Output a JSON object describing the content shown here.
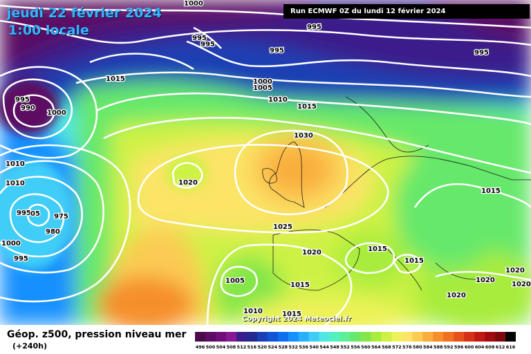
{
  "header": {
    "date": "jeudi 22 février 2024",
    "local_time": "1:00 locale",
    "run": "Run ECMWF 0Z du lundi 12 février 2024"
  },
  "footer": {
    "product": "Géop. z500, pression niveau mer",
    "lead": "(+240h)",
    "copyright": "Copyright 2024 Meteociel.fr"
  },
  "legend": {
    "values": [
      "496",
      "500",
      "504",
      "508",
      "512",
      "516",
      "520",
      "524",
      "528",
      "532",
      "536",
      "540",
      "544",
      "548",
      "552",
      "556",
      "560",
      "564",
      "568",
      "572",
      "576",
      "580",
      "584",
      "588",
      "592",
      "596",
      "600",
      "604",
      "608",
      "612",
      "616"
    ],
    "colors": [
      "#4a0a4a",
      "#5c0c62",
      "#700f7a",
      "#861a94",
      "#3a1f8a",
      "#23298f",
      "#1b3fb4",
      "#1055d6",
      "#0c6ff0",
      "#1590ff",
      "#28b0ff",
      "#3fcdf7",
      "#4fe6e6",
      "#55f0c0",
      "#5cf096",
      "#66e86a",
      "#84e64a",
      "#a8ec3c",
      "#cdf245",
      "#eef25a",
      "#fbe466",
      "#fbcb52",
      "#f9ad3c",
      "#f58f2a",
      "#f07020",
      "#e8501a",
      "#d83016",
      "#c01812",
      "#a00c10",
      "#7c0a0c",
      "#050505"
    ]
  },
  "isobar_labels": [
    {
      "text": "1000"
    },
    {
      "text": "995"
    },
    {
      "text": "995"
    },
    {
      "text": "995"
    },
    {
      "text": "995"
    },
    {
      "text": "995"
    },
    {
      "text": "1015"
    },
    {
      "text": "1000"
    },
    {
      "text": "1005"
    },
    {
      "text": "1010"
    },
    {
      "text": "1015"
    },
    {
      "text": "995"
    },
    {
      "text": "990"
    },
    {
      "text": "1000"
    },
    {
      "text": "1030"
    },
    {
      "text": "1010"
    },
    {
      "text": "1010"
    },
    {
      "text": "1020"
    },
    {
      "text": "995"
    },
    {
      "text": "975"
    },
    {
      "text": "980"
    },
    {
      "text": "05"
    },
    {
      "text": "1000"
    },
    {
      "text": "995"
    },
    {
      "text": "1025"
    },
    {
      "text": "1020"
    },
    {
      "text": "1015"
    },
    {
      "text": "1015"
    },
    {
      "text": "1015"
    },
    {
      "text": "1005"
    },
    {
      "text": "1015"
    },
    {
      "text": "1010"
    },
    {
      "text": "1015"
    },
    {
      "text": "1020"
    },
    {
      "text": "1020"
    },
    {
      "text": "1020"
    },
    {
      "text": "1020"
    }
  ]
}
